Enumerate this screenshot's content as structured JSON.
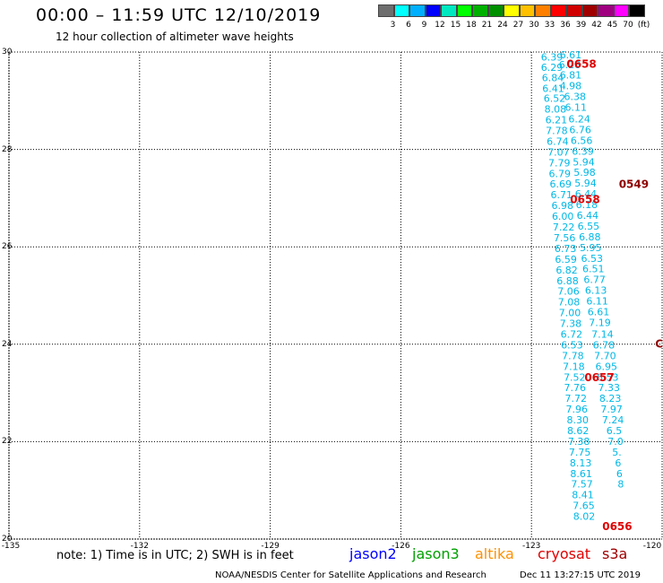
{
  "header": {
    "title": "00:00 – 11:59 UTC 12/10/2019",
    "subtitle": "12 hour collection of altimeter wave heights"
  },
  "color_scale": {
    "colors": [
      "#6e6e6e",
      "#00ffff",
      "#00b0ff",
      "#0000ff",
      "#00e8c0",
      "#00ff00",
      "#00b000",
      "#009000",
      "#ffff00",
      "#ffc000",
      "#ff8000",
      "#ff0000",
      "#d00000",
      "#a00000",
      "#a00080",
      "#ff00ff",
      "#000000"
    ],
    "labels": [
      "3",
      "6",
      "9",
      "12",
      "15",
      "18",
      "21",
      "24",
      "27",
      "30",
      "33",
      "36",
      "39",
      "42",
      "45",
      "70",
      "(ft)"
    ]
  },
  "map": {
    "y_labels": [
      "30",
      "28",
      "26",
      "24",
      "22",
      "20"
    ],
    "x_labels": [
      "-135",
      "-132",
      "-129",
      "-126",
      "-123",
      "-120"
    ]
  },
  "chart_data": {
    "type": "map",
    "x_axis": "longitude",
    "y_axis": "latitude",
    "xlim": [
      -135,
      -120
    ],
    "ylim": [
      20,
      30
    ],
    "grid": true,
    "units": "ft",
    "track_a": {
      "color": "#00b8e6",
      "points": [
        {
          "lat": 29.88,
          "lon": -122.53,
          "v": "6.39"
        },
        {
          "lat": 29.67,
          "lon": -122.53,
          "v": "6.29"
        },
        {
          "lat": 29.46,
          "lon": -122.51,
          "v": "6.84"
        },
        {
          "lat": 29.24,
          "lon": -122.5,
          "v": "6.41"
        },
        {
          "lat": 29.03,
          "lon": -122.47,
          "v": "6.52"
        },
        {
          "lat": 28.81,
          "lon": -122.45,
          "v": "8.08"
        },
        {
          "lat": 28.59,
          "lon": -122.43,
          "v": "6.21"
        },
        {
          "lat": 28.37,
          "lon": -122.42,
          "v": "7.78"
        },
        {
          "lat": 28.15,
          "lon": -122.4,
          "v": "6.74"
        },
        {
          "lat": 27.93,
          "lon": -122.38,
          "v": "7.07"
        },
        {
          "lat": 27.71,
          "lon": -122.36,
          "v": "7.79"
        },
        {
          "lat": 27.49,
          "lon": -122.35,
          "v": "6.79"
        },
        {
          "lat": 27.27,
          "lon": -122.33,
          "v": "6.69"
        },
        {
          "lat": 27.05,
          "lon": -122.31,
          "v": "6.71"
        },
        {
          "lat": 26.83,
          "lon": -122.29,
          "v": "6.98"
        },
        {
          "lat": 26.61,
          "lon": -122.28,
          "v": "6.00"
        },
        {
          "lat": 26.39,
          "lon": -122.26,
          "v": "7.22"
        },
        {
          "lat": 26.17,
          "lon": -122.24,
          "v": "7.56"
        },
        {
          "lat": 25.95,
          "lon": -122.22,
          "v": "6.73"
        },
        {
          "lat": 25.73,
          "lon": -122.21,
          "v": "6.59"
        },
        {
          "lat": 25.51,
          "lon": -122.19,
          "v": "6.82"
        },
        {
          "lat": 25.29,
          "lon": -122.17,
          "v": "6.88"
        },
        {
          "lat": 25.07,
          "lon": -122.15,
          "v": "7.06"
        },
        {
          "lat": 24.85,
          "lon": -122.14,
          "v": "7.08"
        },
        {
          "lat": 24.63,
          "lon": -122.12,
          "v": "7.00"
        },
        {
          "lat": 24.41,
          "lon": -122.1,
          "v": "7.38"
        },
        {
          "lat": 24.19,
          "lon": -122.08,
          "v": "6.72"
        },
        {
          "lat": 23.97,
          "lon": -122.07,
          "v": "6.53"
        },
        {
          "lat": 23.75,
          "lon": -122.05,
          "v": "7.78"
        },
        {
          "lat": 23.53,
          "lon": -122.03,
          "v": "7.18"
        },
        {
          "lat": 23.31,
          "lon": -122.01,
          "v": "7.52"
        },
        {
          "lat": 23.09,
          "lon": -122.0,
          "v": "7.76"
        },
        {
          "lat": 22.87,
          "lon": -121.98,
          "v": "7.72"
        },
        {
          "lat": 22.65,
          "lon": -121.96,
          "v": "7.96"
        },
        {
          "lat": 22.43,
          "lon": -121.94,
          "v": "8.30"
        },
        {
          "lat": 22.21,
          "lon": -121.93,
          "v": "8.62"
        },
        {
          "lat": 21.99,
          "lon": -121.91,
          "v": "7.38"
        },
        {
          "lat": 21.77,
          "lon": -121.89,
          "v": "7.75"
        },
        {
          "lat": 21.55,
          "lon": -121.87,
          "v": "8.13"
        },
        {
          "lat": 21.33,
          "lon": -121.86,
          "v": "8.61"
        },
        {
          "lat": 21.11,
          "lon": -121.84,
          "v": "7.57"
        },
        {
          "lat": 20.89,
          "lon": -121.82,
          "v": "8.41"
        },
        {
          "lat": 20.67,
          "lon": -121.8,
          "v": "7.65"
        },
        {
          "lat": 20.45,
          "lon": -121.79,
          "v": "8.02"
        }
      ]
    },
    "track_b": {
      "color": "#00b8e6",
      "points": [
        {
          "lat": 29.93,
          "lon": -122.1,
          "v": "6.61"
        },
        {
          "lat": 29.72,
          "lon": -122.12,
          "v": "6.28"
        },
        {
          "lat": 29.51,
          "lon": -122.1,
          "v": "6.81"
        },
        {
          "lat": 29.29,
          "lon": -122.1,
          "v": "4.98"
        },
        {
          "lat": 29.07,
          "lon": -122.0,
          "v": "6.38"
        },
        {
          "lat": 28.85,
          "lon": -121.98,
          "v": "6.11"
        },
        {
          "lat": 28.61,
          "lon": -121.9,
          "v": "6.24"
        },
        {
          "lat": 28.39,
          "lon": -121.88,
          "v": "6.76"
        },
        {
          "lat": 28.17,
          "lon": -121.85,
          "v": "6.56"
        },
        {
          "lat": 27.95,
          "lon": -121.82,
          "v": "6.39"
        },
        {
          "lat": 27.73,
          "lon": -121.8,
          "v": "5.94"
        },
        {
          "lat": 27.51,
          "lon": -121.78,
          "v": "5.98"
        },
        {
          "lat": 27.29,
          "lon": -121.76,
          "v": "5.94"
        },
        {
          "lat": 27.07,
          "lon": -121.75,
          "v": "6.44"
        },
        {
          "lat": 26.85,
          "lon": -121.73,
          "v": "6.18"
        },
        {
          "lat": 26.63,
          "lon": -121.71,
          "v": "6.44"
        },
        {
          "lat": 26.41,
          "lon": -121.69,
          "v": "6.55"
        },
        {
          "lat": 26.19,
          "lon": -121.66,
          "v": "6.88"
        },
        {
          "lat": 25.97,
          "lon": -121.64,
          "v": "5.95"
        },
        {
          "lat": 25.75,
          "lon": -121.61,
          "v": "6.53"
        },
        {
          "lat": 25.53,
          "lon": -121.58,
          "v": "6.51"
        },
        {
          "lat": 25.31,
          "lon": -121.55,
          "v": "6.77"
        },
        {
          "lat": 25.09,
          "lon": -121.52,
          "v": "6.13"
        },
        {
          "lat": 24.87,
          "lon": -121.49,
          "v": "6.11"
        },
        {
          "lat": 24.65,
          "lon": -121.46,
          "v": "6.61"
        },
        {
          "lat": 24.43,
          "lon": -121.43,
          "v": "7.19"
        },
        {
          "lat": 24.19,
          "lon": -121.37,
          "v": "7.14"
        },
        {
          "lat": 23.97,
          "lon": -121.34,
          "v": "6.78"
        },
        {
          "lat": 23.75,
          "lon": -121.31,
          "v": "7.70"
        },
        {
          "lat": 23.53,
          "lon": -121.28,
          "v": "6.95"
        },
        {
          "lat": 23.31,
          "lon": -121.25,
          "v": "6.53"
        },
        {
          "lat": 23.09,
          "lon": -121.22,
          "v": "7.33"
        },
        {
          "lat": 22.87,
          "lon": -121.19,
          "v": "8.23"
        },
        {
          "lat": 22.65,
          "lon": -121.16,
          "v": "7.97"
        },
        {
          "lat": 22.43,
          "lon": -121.13,
          "v": "7.24"
        },
        {
          "lat": 22.21,
          "lon": -121.1,
          "v": "6.5"
        },
        {
          "lat": 21.99,
          "lon": -121.07,
          "v": "7.0"
        },
        {
          "lat": 21.77,
          "lon": -121.04,
          "v": "5."
        },
        {
          "lat": 21.55,
          "lon": -121.01,
          "v": "6"
        },
        {
          "lat": 21.33,
          "lon": -120.98,
          "v": "6"
        },
        {
          "lat": 21.11,
          "lon": -120.95,
          "v": "8"
        }
      ]
    },
    "time_labels": [
      {
        "lat": 29.74,
        "lon": -121.85,
        "v": "0658",
        "color": "#e00000"
      },
      {
        "lat": 27.27,
        "lon": -120.65,
        "v": "0549",
        "color": "#900000"
      },
      {
        "lat": 26.96,
        "lon": -121.77,
        "v": "0658",
        "color": "#e00000"
      },
      {
        "lat": 24.0,
        "lon": -120.07,
        "v": "C",
        "color": "#900000"
      },
      {
        "lat": 23.31,
        "lon": -121.44,
        "v": "0657",
        "color": "#e00000"
      },
      {
        "lat": 20.25,
        "lon": -121.03,
        "v": "0656",
        "color": "#e00000"
      }
    ]
  },
  "note": "note: 1) Time is in UTC; 2) SWH is in feet",
  "legend": [
    {
      "name": "jason2",
      "color": "#0000ff"
    },
    {
      "name": "jason3",
      "color": "#00a000"
    },
    {
      "name": "altika",
      "color": "#ff9000"
    },
    {
      "name": "cryosat",
      "color": "#e00000"
    },
    {
      "name": "s3a",
      "color": "#a00000"
    }
  ],
  "footer": {
    "credit": "NOAA/NESDIS Center for Satellite Applications and Research",
    "timestamp": "Dec 11 13:27:15 UTC 2019"
  }
}
